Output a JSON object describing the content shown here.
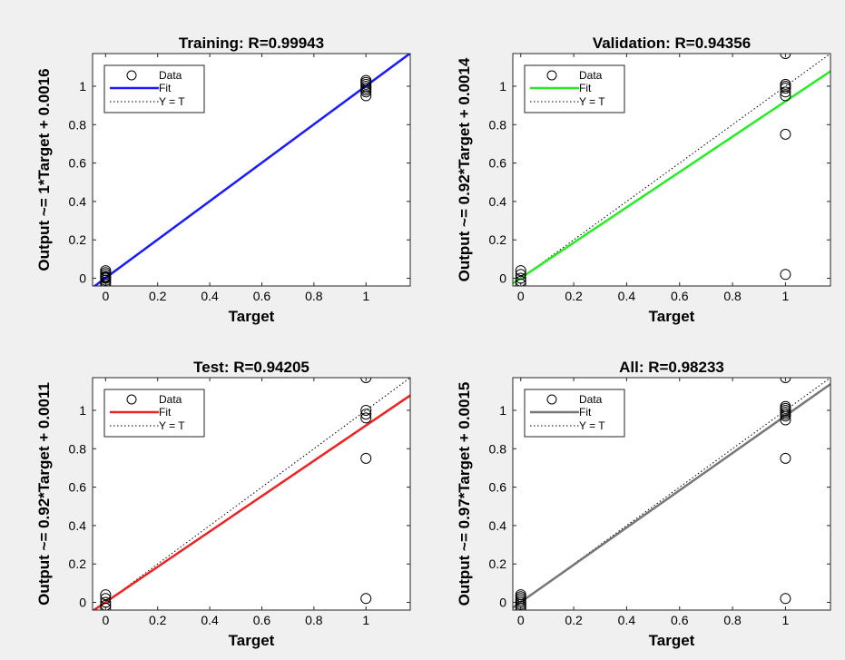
{
  "chart_data": [
    {
      "type": "scatter",
      "title": "Training: R=0.99943",
      "xlabel": "Target",
      "ylabel": "Output ~= 1*Target + 0.0016",
      "xlim": [
        -0.05,
        1.17
      ],
      "ylim": [
        -0.04,
        1.17
      ],
      "xticks": [
        0,
        0.2,
        0.4,
        0.6,
        0.8,
        1
      ],
      "yticks": [
        0,
        0.2,
        0.4,
        0.6,
        0.8,
        1
      ],
      "fit_color": "#1a1aff",
      "fit": {
        "slope": 1,
        "intercept": 0.0016
      },
      "legend": [
        "Data",
        "Fit",
        "Y = T"
      ],
      "legend_position": "top-left",
      "points": [
        [
          0,
          -0.03
        ],
        [
          0,
          -0.02
        ],
        [
          0,
          -0.01
        ],
        [
          0,
          0
        ],
        [
          0,
          0.005
        ],
        [
          0,
          0.01
        ],
        [
          0,
          0.02
        ],
        [
          0,
          0.03
        ],
        [
          0,
          0.04
        ],
        [
          1,
          0.95
        ],
        [
          1,
          0.97
        ],
        [
          1,
          0.98
        ],
        [
          1,
          0.99
        ],
        [
          1,
          1.0
        ],
        [
          1,
          1.01
        ],
        [
          1,
          1.02
        ],
        [
          1,
          1.03
        ]
      ]
    },
    {
      "type": "scatter",
      "title": "Validation: R=0.94356",
      "xlabel": "Target",
      "ylabel": "Output ~= 0.92*Target + 0.0014",
      "xlim": [
        -0.03,
        1.17
      ],
      "ylim": [
        -0.04,
        1.17
      ],
      "xticks": [
        0,
        0.2,
        0.4,
        0.6,
        0.8,
        1
      ],
      "yticks": [
        0,
        0.2,
        0.4,
        0.6,
        0.8,
        1
      ],
      "fit_color": "#22ee22",
      "fit": {
        "slope": 0.92,
        "intercept": 0.0014
      },
      "legend": [
        "Data",
        "Fit",
        "Y = T"
      ],
      "legend_position": "top-left",
      "points": [
        [
          0,
          -0.03
        ],
        [
          0,
          -0.015
        ],
        [
          0,
          0
        ],
        [
          0,
          0.02
        ],
        [
          0,
          0.04
        ],
        [
          1,
          0.02
        ],
        [
          1,
          0.75
        ],
        [
          1,
          0.95
        ],
        [
          1,
          0.97
        ],
        [
          1,
          0.99
        ],
        [
          1,
          1.0
        ],
        [
          1,
          1.01
        ],
        [
          1,
          1.17
        ]
      ]
    },
    {
      "type": "scatter",
      "title": "Test: R=0.94205",
      "xlabel": "Target",
      "ylabel": "Output ~= 0.92*Target + 0.0011",
      "xlim": [
        -0.05,
        1.17
      ],
      "ylim": [
        -0.04,
        1.17
      ],
      "xticks": [
        0,
        0.2,
        0.4,
        0.6,
        0.8,
        1
      ],
      "yticks": [
        0,
        0.2,
        0.4,
        0.6,
        0.8,
        1
      ],
      "fit_color": "#ee2222",
      "fit": {
        "slope": 0.92,
        "intercept": 0.0011
      },
      "legend": [
        "Data",
        "Fit",
        "Y = T"
      ],
      "legend_position": "top-left",
      "points": [
        [
          0,
          -0.03
        ],
        [
          0,
          -0.015
        ],
        [
          0,
          0
        ],
        [
          0,
          0.02
        ],
        [
          0,
          0.04
        ],
        [
          1,
          0.02
        ],
        [
          1,
          0.75
        ],
        [
          1,
          0.96
        ],
        [
          1,
          0.98
        ],
        [
          1,
          1.0
        ],
        [
          1,
          1.17
        ]
      ]
    },
    {
      "type": "scatter",
      "title": "All: R=0.98233",
      "xlabel": "Target",
      "ylabel": "Output ~= 0.97*Target + 0.0015",
      "xlim": [
        -0.03,
        1.17
      ],
      "ylim": [
        -0.04,
        1.17
      ],
      "xticks": [
        0,
        0.2,
        0.4,
        0.6,
        0.8,
        1
      ],
      "yticks": [
        0,
        0.2,
        0.4,
        0.6,
        0.8,
        1
      ],
      "fit_color": "#777777",
      "fit": {
        "slope": 0.97,
        "intercept": 0.0015
      },
      "legend": [
        "Data",
        "Fit",
        "Y = T"
      ],
      "legend_position": "top-left",
      "points": [
        [
          0,
          -0.03
        ],
        [
          0,
          -0.02
        ],
        [
          0,
          -0.01
        ],
        [
          0,
          0
        ],
        [
          0,
          0.01
        ],
        [
          0,
          0.02
        ],
        [
          0,
          0.03
        ],
        [
          0,
          0.04
        ],
        [
          1,
          0.02
        ],
        [
          1,
          0.75
        ],
        [
          1,
          0.95
        ],
        [
          1,
          0.97
        ],
        [
          1,
          0.98
        ],
        [
          1,
          0.99
        ],
        [
          1,
          1.0
        ],
        [
          1,
          1.01
        ],
        [
          1,
          1.02
        ],
        [
          1,
          1.17
        ]
      ]
    }
  ]
}
